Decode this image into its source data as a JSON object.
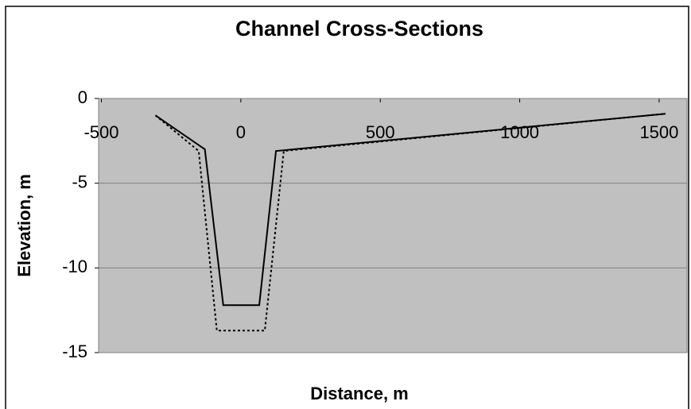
{
  "chart_data": {
    "type": "line",
    "title": "Channel Cross-Sections",
    "x_label": "Distance, m",
    "y_label": "Elevation, m",
    "xlim": [
      -510,
      1600
    ],
    "xticks": [
      -500,
      0,
      500,
      1000,
      1500
    ],
    "ylim": [
      -15,
      0
    ],
    "yticks": [
      0,
      -5,
      -10,
      -15
    ],
    "grid": true,
    "series": [
      {
        "color": "#000000",
        "dash": "solid",
        "x": [
          -306,
          -129,
          -63,
          66,
          126,
          1523
        ],
        "values": [
          -1,
          -3,
          -12.2,
          -12.2,
          -3.1,
          -0.9
        ]
      },
      {
        "color": "#000000",
        "dash": "dotted",
        "x": [
          -306,
          -151,
          -86,
          86,
          154,
          1523
        ],
        "values": [
          -1,
          -3.1,
          -13.7,
          -13.7,
          -3.1,
          -0.9
        ]
      }
    ]
  }
}
